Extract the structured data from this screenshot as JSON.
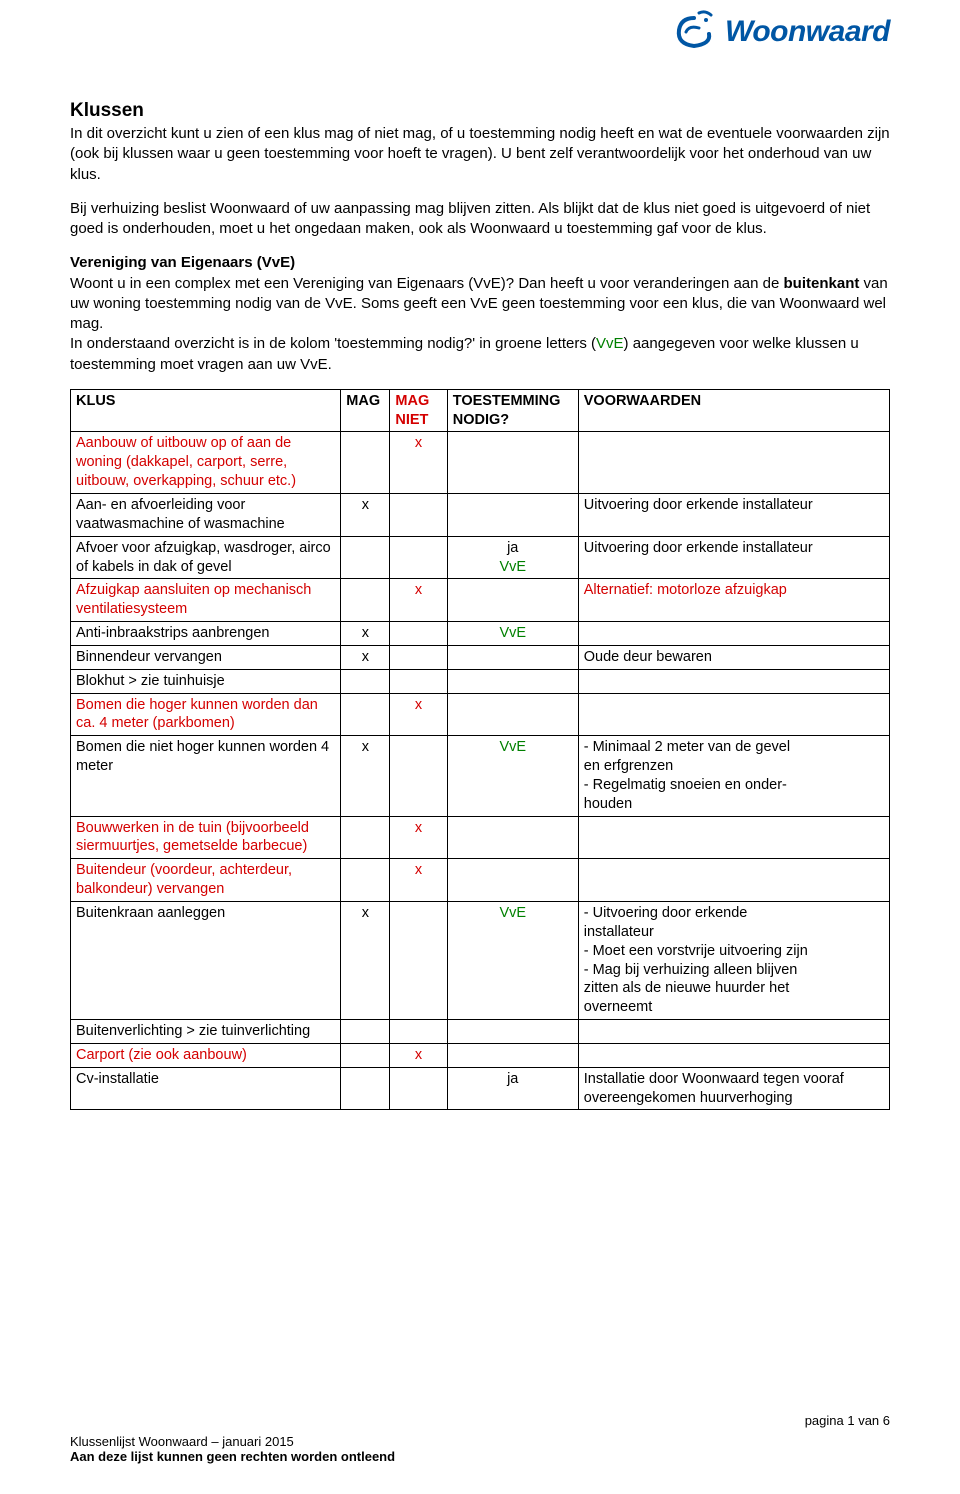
{
  "brand": {
    "name": "Woonwaard",
    "color": "#0056a4"
  },
  "title": "Klussen",
  "intro": {
    "p1": "In dit overzicht kunt u zien of een klus mag of niet mag, of u toestemming nodig heeft en wat de eventuele voorwaarden zijn (ook bij klussen waar u geen toestemming voor hoeft te vragen). U bent zelf verantwoordelijk voor het onderhoud van uw klus.",
    "p2": "Bij verhuizing beslist Woonwaard of uw aanpassing mag blijven zitten. Als blijkt dat de klus niet goed is uitgevoerd of niet goed is onderhouden, moet u het ongedaan maken, ook als Woonwaard u toestemming gaf voor de klus."
  },
  "vve": {
    "heading": "Vereniging van Eigenaars (VvE)",
    "body_pre": "Woont u in een complex met een Vereniging van Eigenaars (VvE)? Dan heeft u voor veranderingen aan de ",
    "body_bold": "buitenkant",
    "body_mid": " van uw woning toestemming nodig van de VvE. Soms geeft een VvE geen toestemming voor een klus, die van Woonwaard wel mag.\nIn onderstaand overzicht is in de kolom 'toestemming nodig?' in groene letters (",
    "vve_word": "VvE",
    "body_post": ") aangegeven voor welke klussen u toestemming moet vragen aan uw VvE."
  },
  "columns": {
    "klus": "KLUS",
    "mag": "MAG",
    "magniet": "MAG NIET",
    "toestemming": "TOESTEMMING NODIG?",
    "voorwaarden": "VOORWAARDEN"
  },
  "rows": [
    {
      "klus": "Aanbouw of uitbouw op of aan de woning (dakkapel, carport, serre, uitbouw, overkapping, schuur etc.)",
      "klus_red": true,
      "magniet": "x"
    },
    {
      "klus": "Aan- en afvoerleiding voor vaatwasmachine of wasmachine",
      "mag": "x",
      "voorw": "Uitvoering door erkende installateur"
    },
    {
      "klus": "Afvoer voor afzuigkap, wasdroger, airco of kabels in dak of gevel",
      "toest": "ja",
      "toest_vve": "VvE",
      "voorw": "Uitvoering door erkende installateur"
    },
    {
      "klus": "Afzuigkap aansluiten op mechanisch ventilatiesysteem",
      "klus_red": true,
      "magniet": "x",
      "voorw": "Alternatief: motorloze afzuigkap",
      "voorw_red": true
    },
    {
      "klus": "Anti-inbraakstrips aanbrengen",
      "mag": "x",
      "toest_vve": "VvE"
    },
    {
      "klus": "Binnendeur vervangen",
      "mag": "x",
      "voorw": "Oude deur bewaren"
    },
    {
      "klus": "Blokhut > zie tuinhuisje"
    },
    {
      "klus": "Bomen die hoger kunnen worden dan ca. 4 meter (parkbomen)",
      "klus_red": true,
      "magniet": "x"
    },
    {
      "klus": "Bomen die niet hoger kunnen worden 4 meter",
      "mag": "x",
      "toest_vve": "VvE",
      "voorw": "- Minimaal 2 meter van de gevel\n  en erfgrenzen\n- Regelmatig snoeien en onder-\n  houden"
    },
    {
      "klus": "Bouwwerken in de tuin (bijvoorbeeld siermuurtjes, gemetselde barbecue)",
      "klus_red": true,
      "magniet": "x"
    },
    {
      "klus": "Buitendeur (voordeur, achterdeur, balkondeur) vervangen",
      "klus_red": true,
      "magniet": "x"
    },
    {
      "klus": "Buitenkraan aanleggen",
      "mag": "x",
      "toest_vve": "VvE",
      "voorw": "- Uitvoering door erkende\n  installateur\n- Moet een vorstvrije uitvoering zijn\n- Mag bij verhuizing alleen blijven\n  zitten als de nieuwe huurder het\n  overneemt"
    },
    {
      "klus": "Buitenverlichting > zie tuinverlichting"
    },
    {
      "klus": "Carport (zie ook aanbouw)",
      "klus_red": true,
      "magniet": "x"
    },
    {
      "klus": "Cv-installatie",
      "toest": "ja",
      "voorw": "Installatie door Woonwaard tegen vooraf overeengekomen huurverhoging"
    }
  ],
  "footer": {
    "page": "pagina 1 van 6",
    "line1": "Klussenlijst Woonwaard – januari 2015",
    "line2": "Aan deze lijst kunnen geen rechten worden ontleend"
  }
}
